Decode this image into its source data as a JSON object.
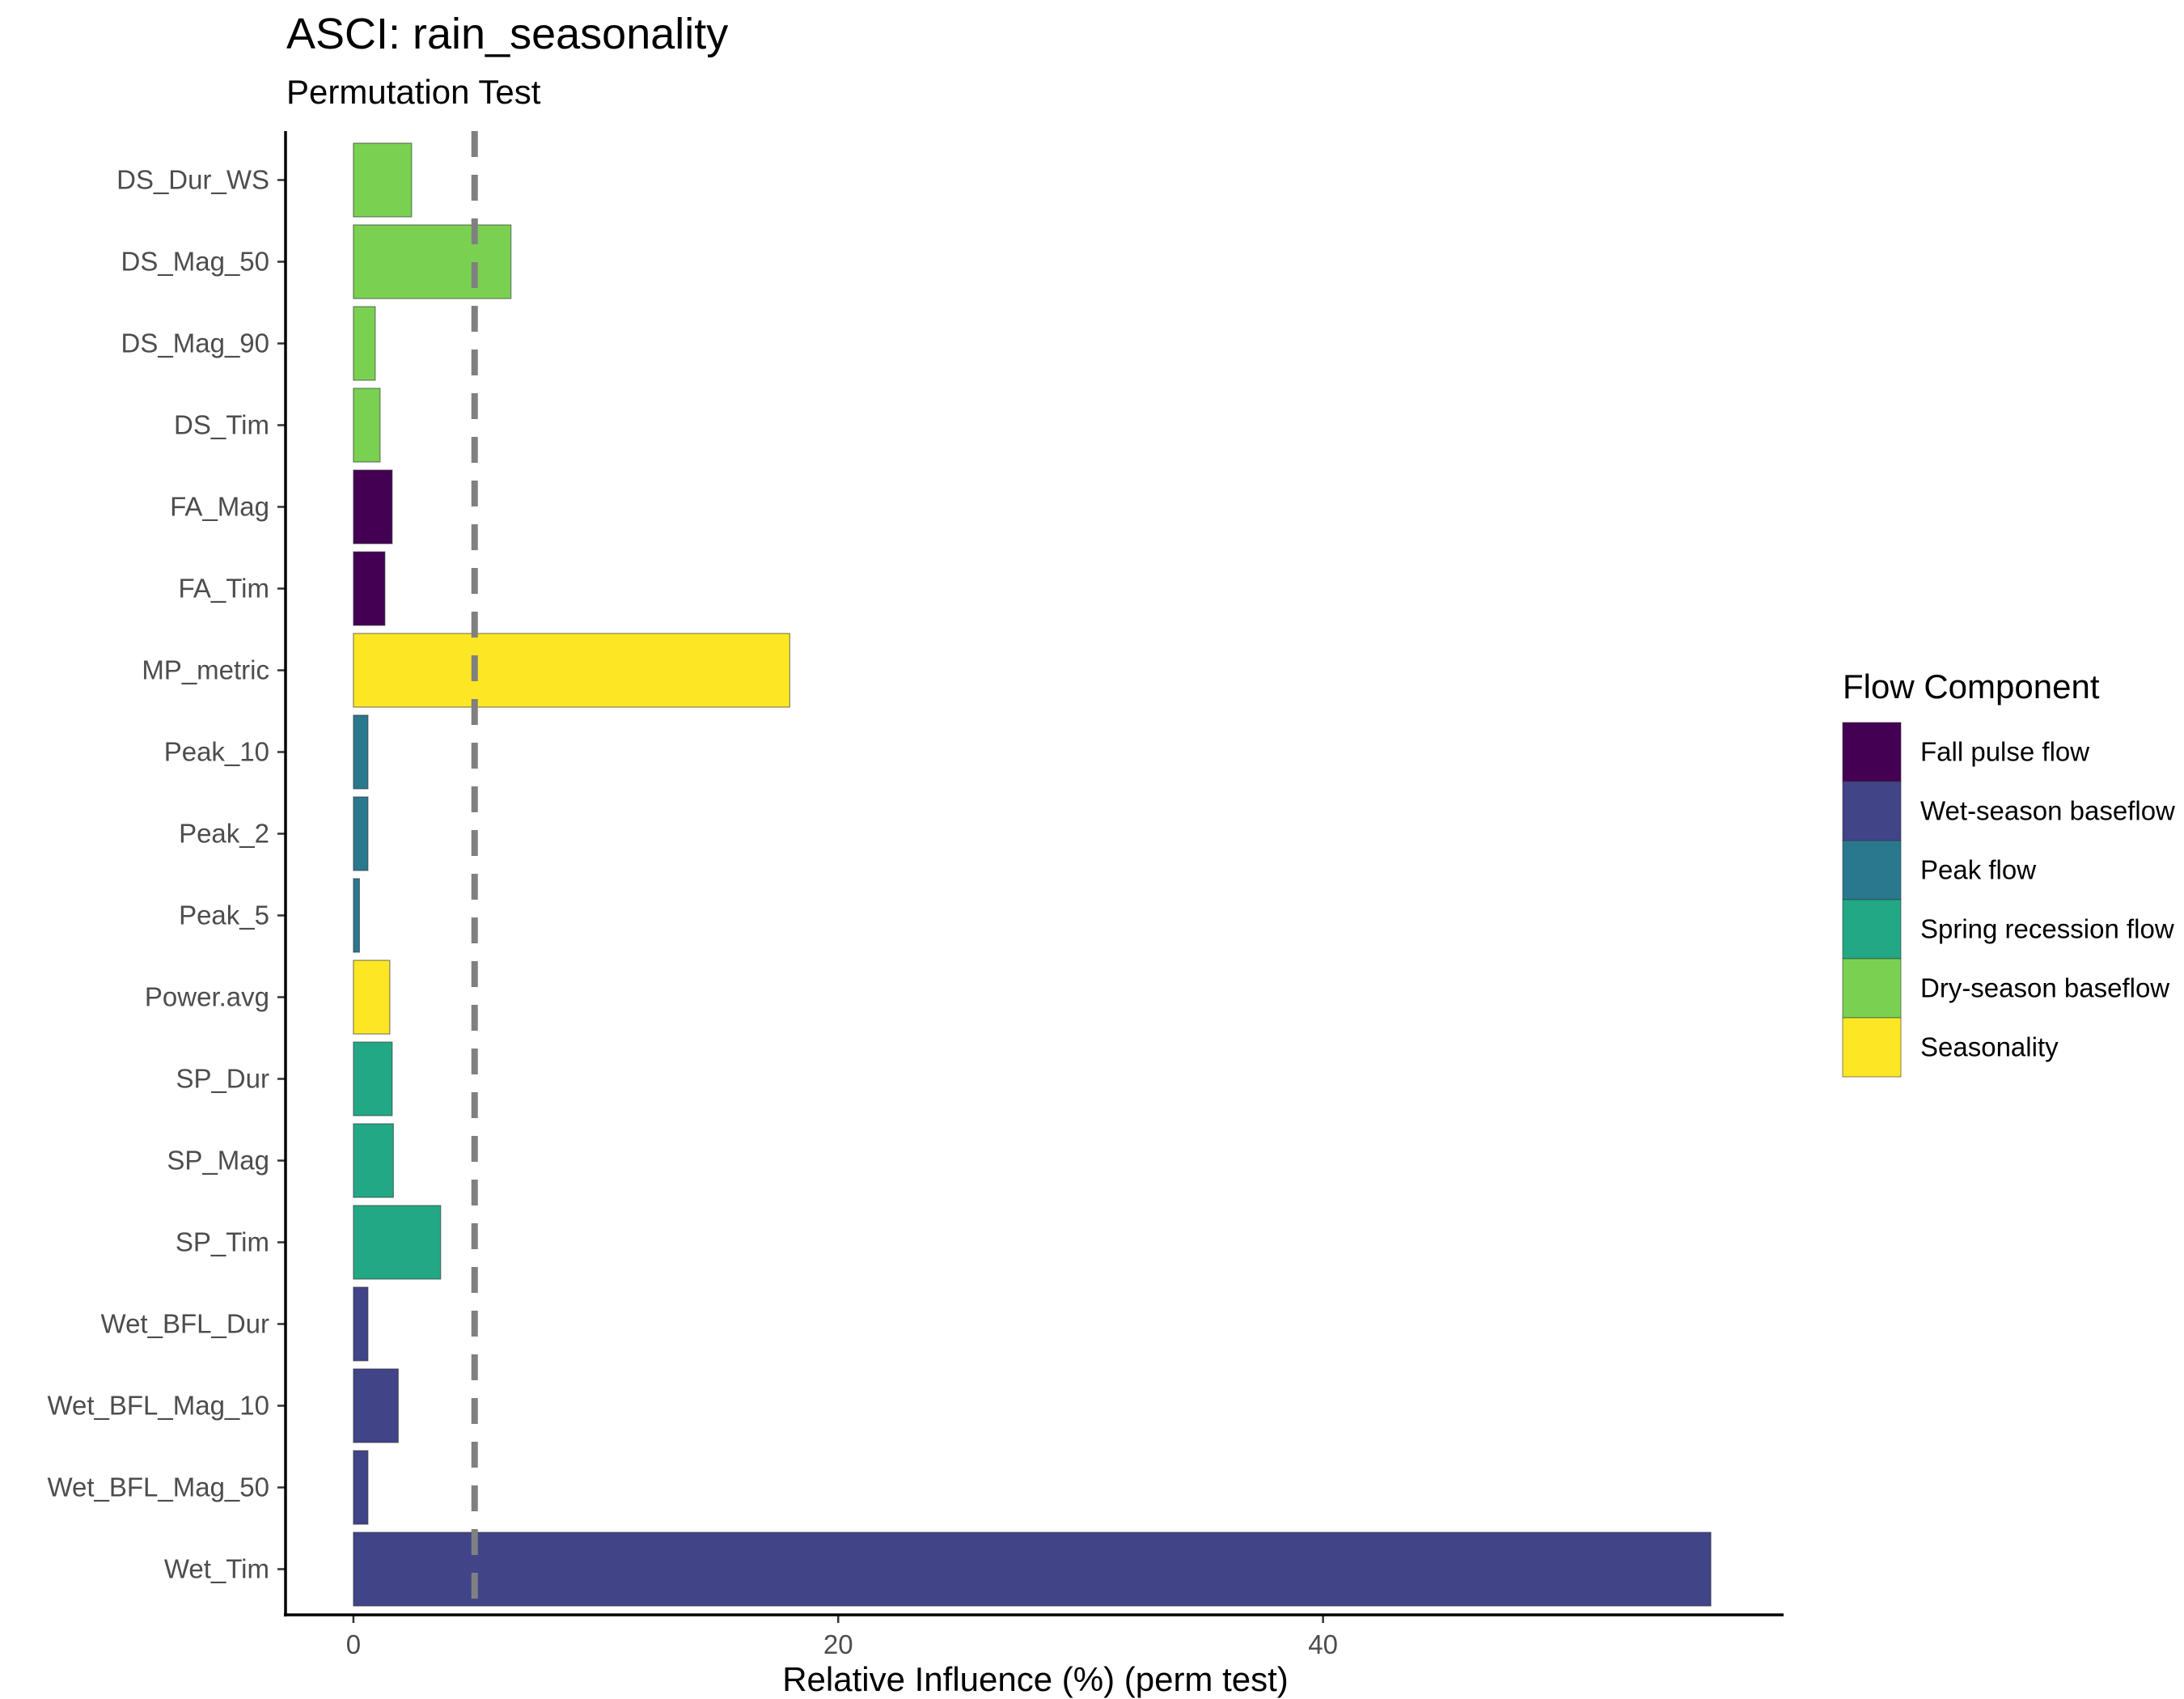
{
  "chart_data": {
    "type": "bar",
    "orientation": "horizontal",
    "title": "ASCI: rain_seasonality",
    "subtitle": "Permutation Test",
    "xlabel": "Relative Influence (%) (perm test)",
    "ylabel": "",
    "xlim": [
      -2.8,
      59.0
    ],
    "xticks": [
      0,
      20,
      40
    ],
    "grid": false,
    "reference_line": {
      "x": 5,
      "style": "dashed",
      "color": "#808080"
    },
    "categories": [
      "DS_Dur_WS",
      "DS_Mag_50",
      "DS_Mag_90",
      "DS_Tim",
      "FA_Mag",
      "FA_Tim",
      "MP_metric",
      "Peak_10",
      "Peak_2",
      "Peak_5",
      "Power.avg",
      "SP_Dur",
      "SP_Mag",
      "SP_Tim",
      "Wet_BFL_Dur",
      "Wet_BFL_Mag_10",
      "Wet_BFL_Mag_50",
      "Wet_Tim"
    ],
    "values": [
      2.4,
      6.5,
      0.9,
      1.1,
      1.6,
      1.3,
      18.0,
      0.6,
      0.6,
      0.25,
      1.5,
      1.6,
      1.65,
      3.6,
      0.6,
      1.85,
      0.6,
      56.0
    ],
    "groups": [
      "Dry-season baseflow",
      "Dry-season baseflow",
      "Dry-season baseflow",
      "Dry-season baseflow",
      "Fall pulse flow",
      "Fall pulse flow",
      "Seasonality",
      "Peak flow",
      "Peak flow",
      "Peak flow",
      "Seasonality",
      "Spring recession flow",
      "Spring recession flow",
      "Spring recession flow",
      "Wet-season baseflow",
      "Wet-season baseflow",
      "Wet-season baseflow",
      "Wet-season baseflow"
    ],
    "legend": {
      "title": "Flow Component",
      "placement": "right",
      "entries": [
        {
          "label": "Fall pulse flow",
          "color": "#440154"
        },
        {
          "label": "Wet-season baseflow",
          "color": "#414487"
        },
        {
          "label": "Peak flow",
          "color": "#2A788E"
        },
        {
          "label": "Spring recession flow",
          "color": "#22A884"
        },
        {
          "label": "Dry-season baseflow",
          "color": "#7AD151"
        },
        {
          "label": "Seasonality",
          "color": "#FDE725"
        }
      ]
    }
  }
}
